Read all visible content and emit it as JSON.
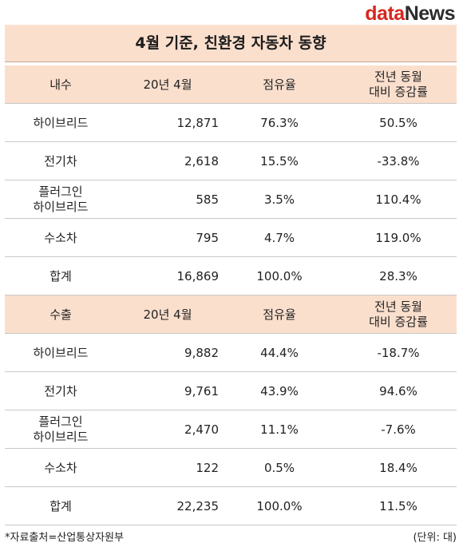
{
  "logo": {
    "part1": "data",
    "part2": "News"
  },
  "title": "4월 기준, 친환경 자동차 동향",
  "sections": [
    {
      "header": [
        "내수",
        "20년 4월",
        "점유율",
        "전년 동월\n대비 증감률"
      ],
      "rows": [
        [
          "하이브리드",
          "12,871",
          "76.3%",
          "50.5%"
        ],
        [
          "전기차",
          "2,618",
          "15.5%",
          "-33.8%"
        ],
        [
          "플러그인\n하이브리드",
          "585",
          "3.5%",
          "110.4%"
        ],
        [
          "수소차",
          "795",
          "4.7%",
          "119.0%"
        ],
        [
          "합계",
          "16,869",
          "100.0%",
          "28.3%"
        ]
      ]
    },
    {
      "header": [
        "수출",
        "20년 4월",
        "점유율",
        "전년 동월\n대비 증감률"
      ],
      "rows": [
        [
          "하이브리드",
          "9,882",
          "44.4%",
          "-18.7%"
        ],
        [
          "전기차",
          "9,761",
          "43.9%",
          "94.6%"
        ],
        [
          "플러그인\n하이브리드",
          "2,470",
          "11.1%",
          "-7.6%"
        ],
        [
          "수소차",
          "122",
          "0.5%",
          "18.4%"
        ],
        [
          "합계",
          "22,235",
          "100.0%",
          "11.5%"
        ]
      ]
    }
  ],
  "footer": {
    "note": "*자료출처=산업통상자원부",
    "unit": "(단위: 대)"
  },
  "chart_data": {
    "type": "table",
    "title": "4월 기준, 친환경 자동차 동향",
    "columns": [
      "20년 4월",
      "점유율",
      "전년 동월 대비 증감률"
    ],
    "groups": [
      {
        "name": "내수",
        "categories": [
          "하이브리드",
          "전기차",
          "플러그인 하이브리드",
          "수소차",
          "합계"
        ],
        "values": [
          [
            12871,
            76.3,
            50.5
          ],
          [
            2618,
            15.5,
            -33.8
          ],
          [
            585,
            3.5,
            110.4
          ],
          [
            795,
            4.7,
            119.0
          ],
          [
            16869,
            100.0,
            28.3
          ]
        ]
      },
      {
        "name": "수출",
        "categories": [
          "하이브리드",
          "전기차",
          "플러그인 하이브리드",
          "수소차",
          "합계"
        ],
        "values": [
          [
            9882,
            44.4,
            -18.7
          ],
          [
            9761,
            43.9,
            94.6
          ],
          [
            2470,
            11.1,
            -7.6
          ],
          [
            122,
            0.5,
            18.4
          ],
          [
            22235,
            100.0,
            11.5
          ]
        ]
      }
    ],
    "unit": "대"
  },
  "colors": {
    "header_bg": "#fbdfcd",
    "logo_red": "#d7261e"
  }
}
